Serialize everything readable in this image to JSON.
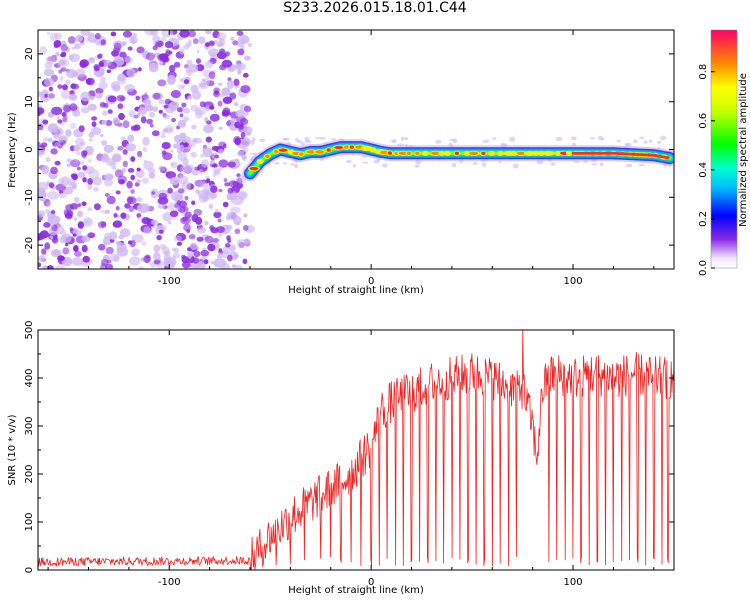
{
  "title": "S233.2026.015.18.01.C44",
  "colors": {
    "trace": "#ee2222",
    "noise": "#8a2be2",
    "noise_light": "#cfb6f2",
    "axis": "#000000"
  },
  "colorbar": {
    "label": "Normalized spectral amplitude",
    "ticks": [
      "0.0",
      "0.2",
      "0.4",
      "0.6",
      "0.8"
    ],
    "tick_values": [
      0.0,
      0.2,
      0.4,
      0.6,
      0.8
    ],
    "range": [
      0,
      0.97
    ]
  },
  "chart_data": [
    {
      "type": "heatmap",
      "title": "S233.2026.015.18.01.C44",
      "xlabel": "Height of straight line (km)",
      "ylabel": "Frequency (Hz)",
      "xlim": [
        -165,
        150
      ],
      "ylim": [
        -25,
        25
      ],
      "xticks": [
        -100,
        0,
        100
      ],
      "xtick_labels": [
        "-100",
        "0",
        "100"
      ],
      "yticks": [
        -20,
        -10,
        0,
        10,
        20
      ],
      "ytick_labels": [
        "-20",
        "-10",
        "0",
        "10",
        "20"
      ],
      "noise_region_x": [
        -165,
        -60
      ],
      "ridge": {
        "x": [
          -60,
          -55,
          -50,
          -45,
          -40,
          -35,
          -30,
          -25,
          -20,
          -15,
          -10,
          -5,
          0,
          5,
          10,
          20,
          40,
          60,
          80,
          100,
          120,
          140,
          148
        ],
        "freq": [
          -5,
          -2.5,
          -1.0,
          0.0,
          -0.5,
          -1.0,
          -0.5,
          -0.5,
          0.0,
          0.5,
          0.5,
          0.5,
          0.0,
          -0.5,
          -0.8,
          -0.8,
          -0.8,
          -0.8,
          -0.8,
          -0.8,
          -0.8,
          -1.2,
          -1.8
        ]
      }
    },
    {
      "type": "line",
      "xlabel": "Height of straight line (km)",
      "ylabel": "SNR (10 * v/v)",
      "xlim": [
        -165,
        150
      ],
      "ylim": [
        0,
        500
      ],
      "xticks": [
        -100,
        0,
        100
      ],
      "xtick_labels": [
        "-100",
        "0",
        "100"
      ],
      "yticks": [
        0,
        100,
        200,
        300,
        400,
        500
      ],
      "ytick_labels": [
        "0",
        "100",
        "200",
        "300",
        "400",
        "500"
      ],
      "series": [
        {
          "name": "SNR",
          "envelope": {
            "x": [
              -165,
              -60,
              -50,
              -40,
              -30,
              -20,
              -10,
              0,
              5,
              10,
              20,
              30,
              40,
              50,
              60,
              70,
              75,
              80,
              82,
              85,
              90,
              100,
              110,
              120,
              130,
              140,
              150
            ],
            "y": [
              15,
              18,
              70,
              110,
              140,
              170,
              200,
              260,
              330,
              350,
              370,
              390,
              400,
              410,
              400,
              380,
              380,
              300,
              230,
              380,
              410,
              400,
              410,
              400,
              410,
              400,
              400
            ]
          },
          "dropout_x": [
            -47,
            -40,
            -33,
            -25,
            -20,
            -15,
            -10,
            -5,
            0,
            4,
            8,
            12,
            16,
            20,
            24,
            28,
            32,
            36,
            40,
            44,
            48,
            52,
            56,
            60,
            64,
            68,
            72,
            88,
            92,
            96,
            100,
            104,
            108,
            112,
            116,
            120,
            124,
            128,
            132,
            136,
            140,
            144,
            147
          ],
          "spike_x": [
            75
          ],
          "spike_y": [
            500
          ]
        }
      ]
    }
  ]
}
